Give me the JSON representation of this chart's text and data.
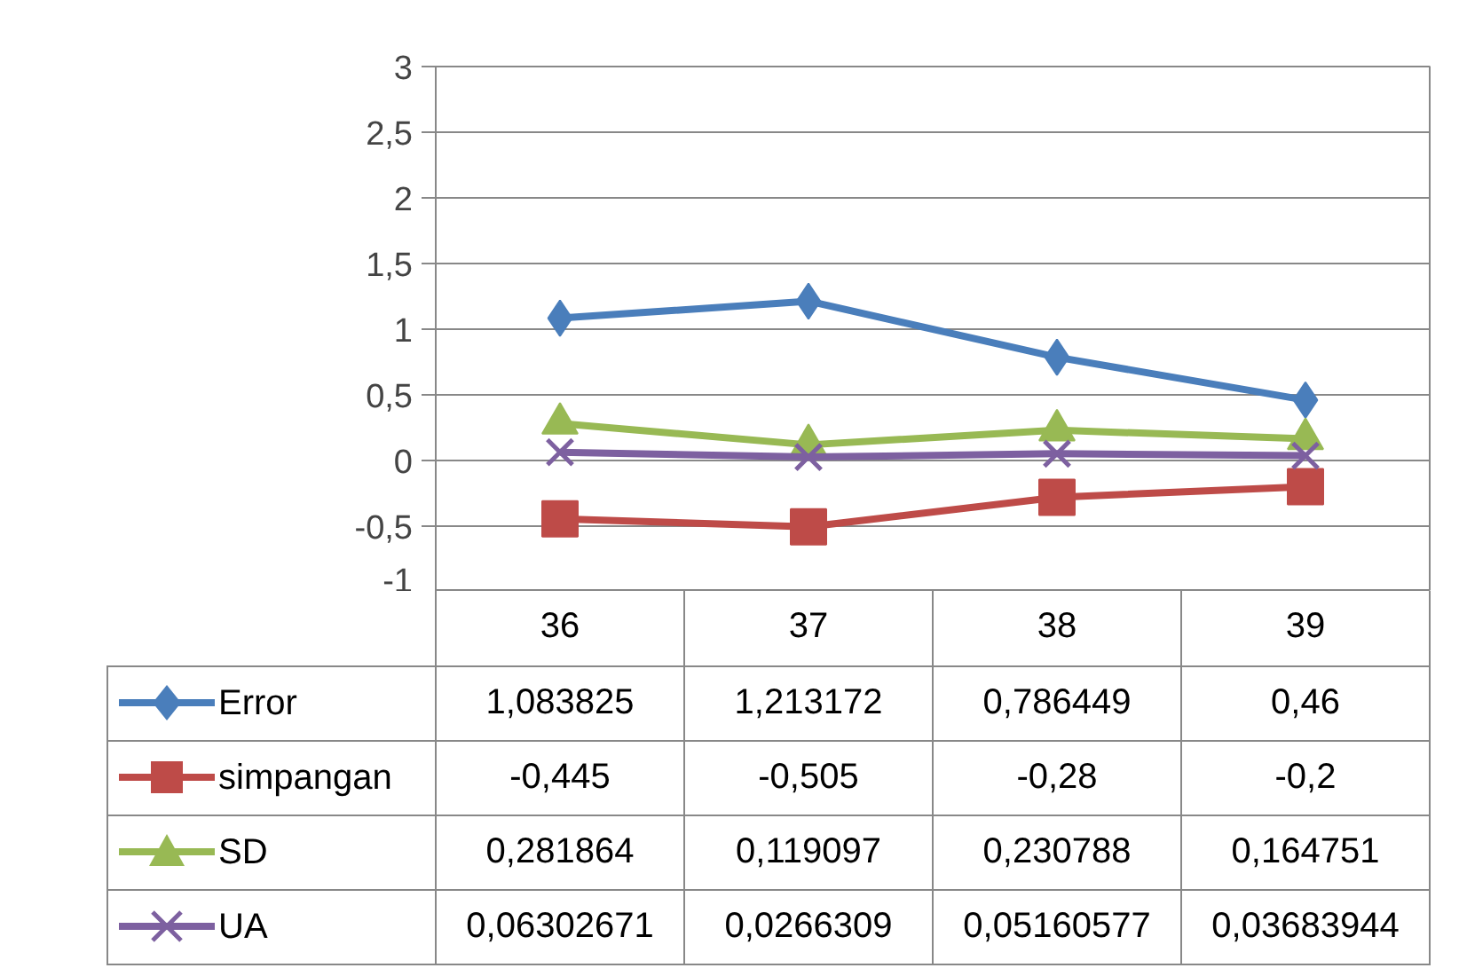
{
  "chart_data": {
    "type": "line",
    "categories": [
      "36",
      "37",
      "38",
      "39"
    ],
    "series": [
      {
        "name": "Error",
        "color": "#4a7ebb",
        "marker": "diamond",
        "values": [
          1.083825,
          1.213172,
          0.786449,
          0.46
        ],
        "value_labels": [
          "1,083825",
          "1,213172",
          "0,786449",
          "0,46"
        ]
      },
      {
        "name": "simpangan",
        "color": "#be4b48",
        "marker": "square",
        "values": [
          -0.445,
          -0.505,
          -0.28,
          -0.2
        ],
        "value_labels": [
          "-0,445",
          "-0,505",
          "-0,28",
          "-0,2"
        ]
      },
      {
        "name": "SD",
        "color": "#98b954",
        "marker": "triangle",
        "values": [
          0.281864,
          0.119097,
          0.230788,
          0.164751
        ],
        "value_labels": [
          "0,281864",
          "0,119097",
          "0,230788",
          "0,164751"
        ]
      },
      {
        "name": "UA",
        "color": "#7d60a0",
        "marker": "cross",
        "values": [
          0.06302671,
          0.0266309,
          0.05160577,
          0.03683944
        ],
        "value_labels": [
          "0,06302671",
          "0,0266309",
          "0,05160577",
          "0,03683944"
        ]
      }
    ],
    "ylim": [
      -1,
      3
    ],
    "yticks": [
      {
        "value": -1,
        "label": "-1"
      },
      {
        "value": -0.5,
        "label": "-0,5"
      },
      0,
      {
        "value": 0.5,
        "label": "0,5"
      },
      1,
      {
        "value": 1.5,
        "label": "1,5"
      },
      2,
      {
        "value": 2.5,
        "label": "2,5"
      },
      3
    ],
    "grid": "y",
    "legend": "bottom",
    "line_style": "solid"
  }
}
